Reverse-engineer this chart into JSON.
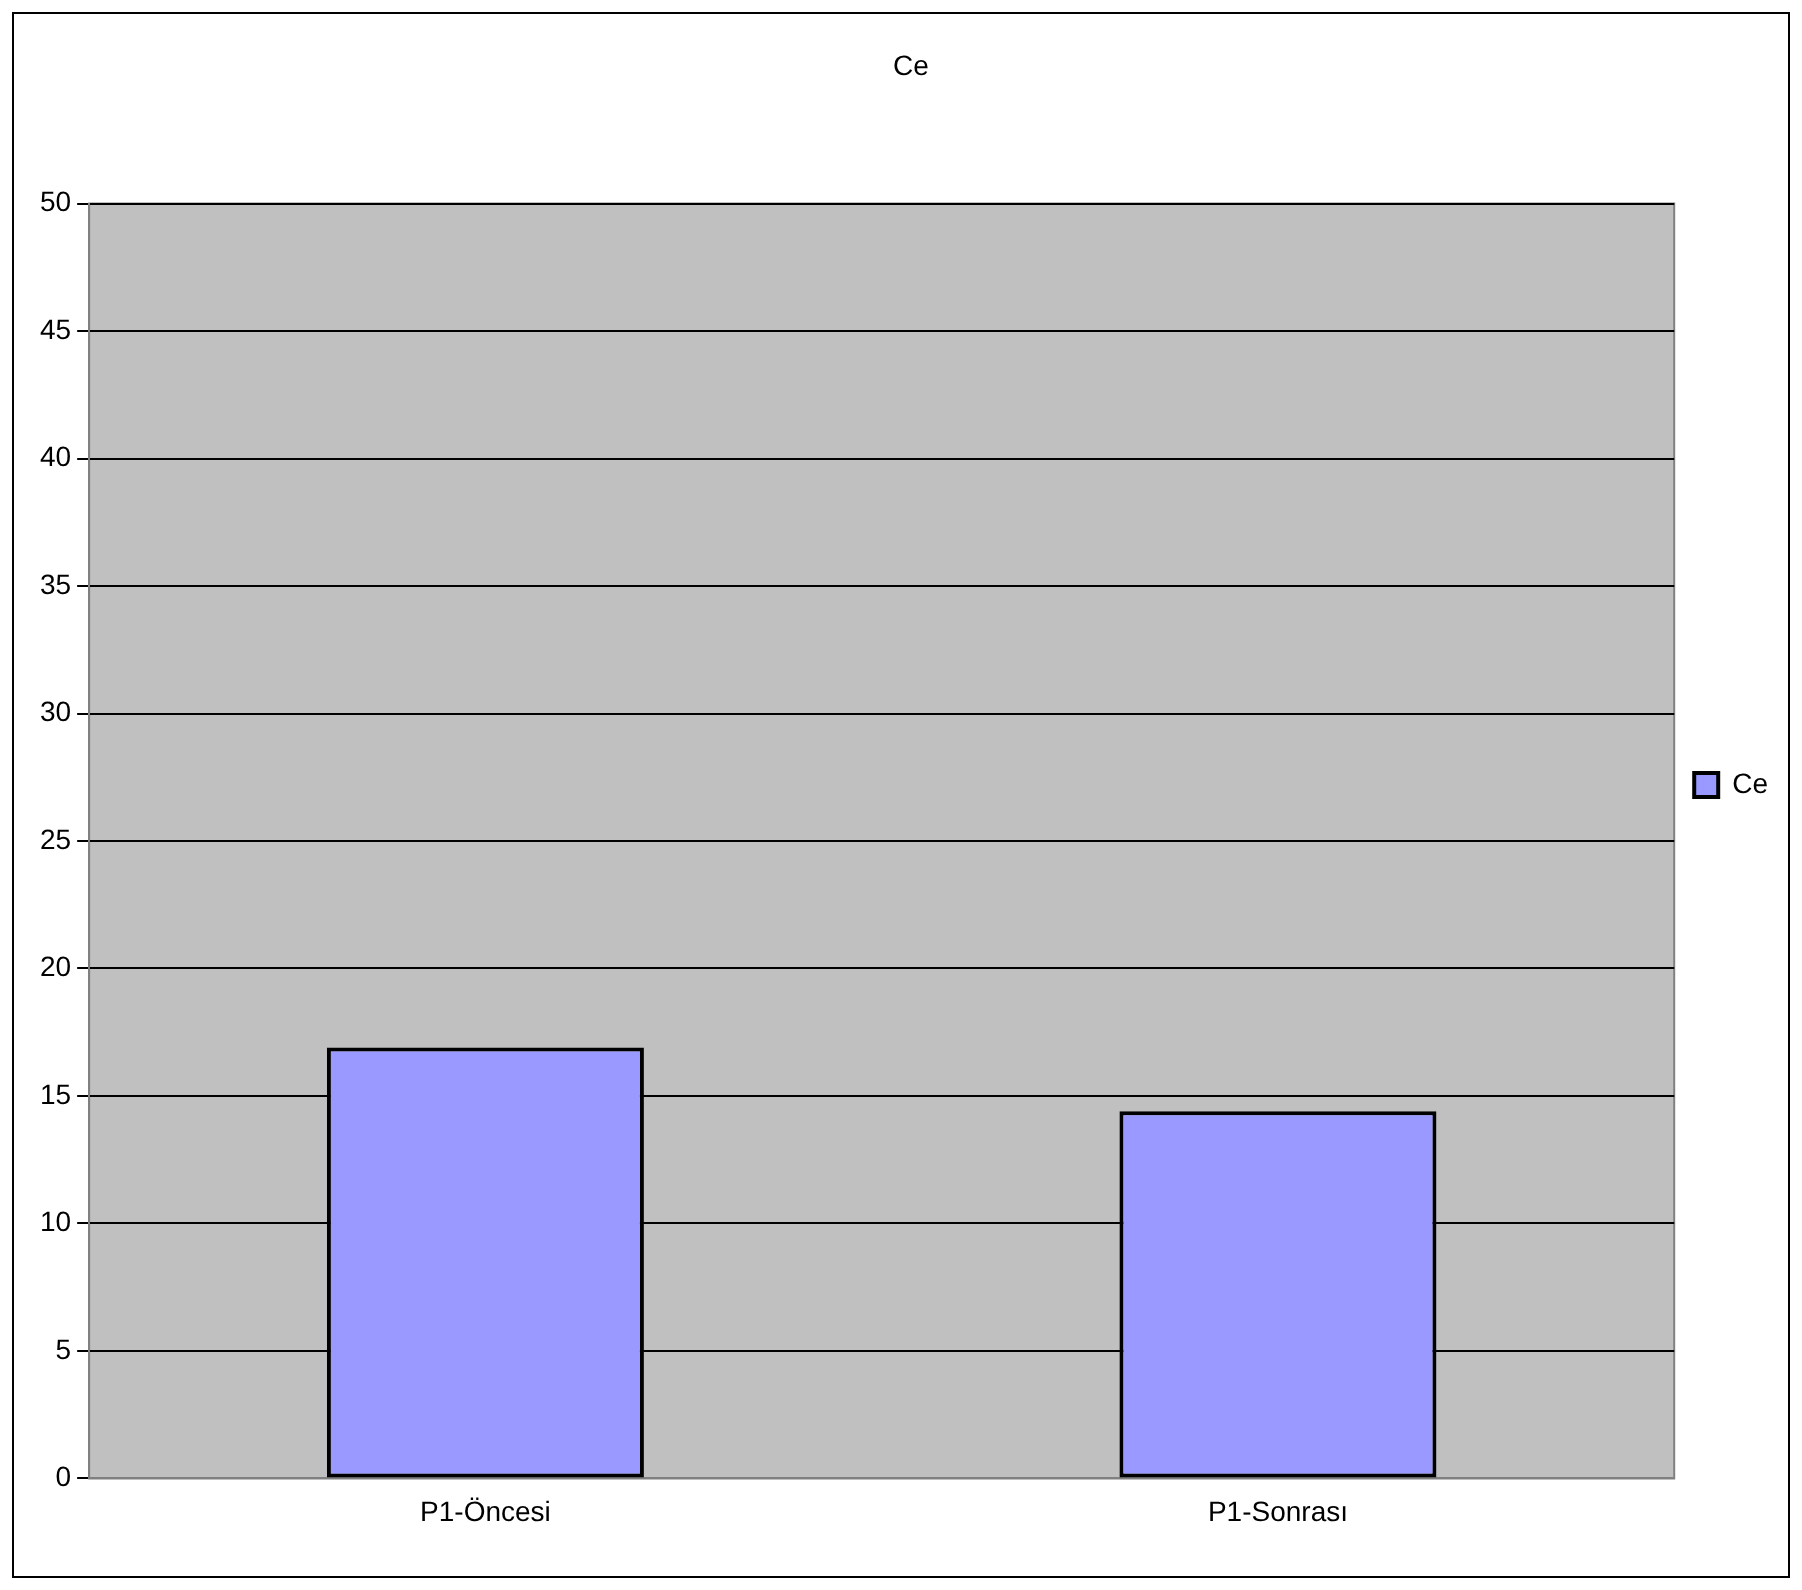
{
  "chart_data": {
    "type": "bar",
    "title": "Ce",
    "categories": [
      "P1-Öncesi",
      "P1-Sonrası"
    ],
    "series": [
      {
        "name": "Ce",
        "color": "#9999ff",
        "values": [
          16.9,
          14.4
        ]
      }
    ],
    "ylim": [
      0,
      50
    ],
    "yticks": [
      0,
      5,
      10,
      15,
      20,
      25,
      30,
      35,
      40,
      45,
      50
    ],
    "grid": "y",
    "legend": "right"
  }
}
